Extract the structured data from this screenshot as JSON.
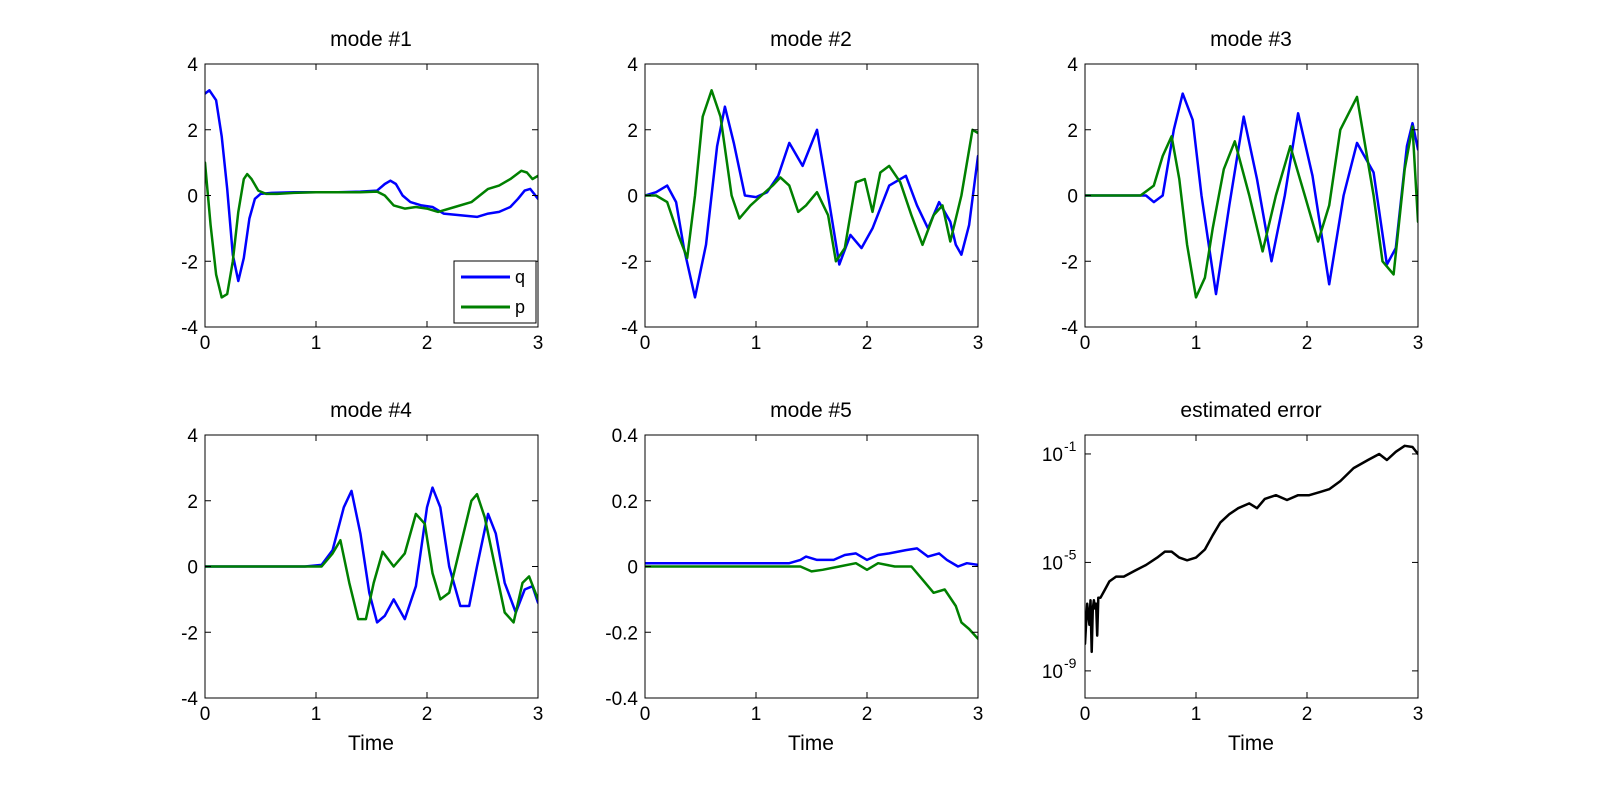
{
  "colors": {
    "q": "#0000ff",
    "p": "#008000",
    "error": "#000000",
    "axes": "#000000",
    "background": "#ffffff"
  },
  "chart_data": [
    {
      "type": "line",
      "title": "mode #1",
      "xlabel": "",
      "xlim": [
        0,
        3
      ],
      "ylim": [
        -4,
        4
      ],
      "xticks": [
        "0",
        "1",
        "2",
        "3"
      ],
      "yticks": [
        "-4",
        "-2",
        "0",
        "2",
        "4"
      ],
      "legend": {
        "placement": "bottom-right",
        "entries": [
          "q",
          "p"
        ]
      },
      "series": [
        {
          "name": "q",
          "color": "#0000ff",
          "x": [
            0,
            0.04,
            0.1,
            0.15,
            0.2,
            0.25,
            0.3,
            0.35,
            0.4,
            0.45,
            0.5,
            0.6,
            0.8,
            1.0,
            1.2,
            1.4,
            1.55,
            1.62,
            1.67,
            1.72,
            1.78,
            1.85,
            1.95,
            2.05,
            2.15,
            2.3,
            2.45,
            2.55,
            2.65,
            2.75,
            2.82,
            2.88,
            2.93,
            3.0
          ],
          "y": [
            3.1,
            3.2,
            2.9,
            1.8,
            0.2,
            -1.8,
            -2.6,
            -1.9,
            -0.7,
            -0.1,
            0.05,
            0.08,
            0.1,
            0.1,
            0.1,
            0.12,
            0.15,
            0.35,
            0.45,
            0.35,
            0.0,
            -0.2,
            -0.3,
            -0.35,
            -0.55,
            -0.6,
            -0.65,
            -0.55,
            -0.5,
            -0.35,
            -0.1,
            0.15,
            0.2,
            -0.1
          ]
        },
        {
          "name": "p",
          "color": "#008000",
          "x": [
            0,
            0.05,
            0.1,
            0.15,
            0.2,
            0.25,
            0.3,
            0.35,
            0.38,
            0.42,
            0.48,
            0.55,
            0.65,
            0.8,
            1.0,
            1.2,
            1.4,
            1.55,
            1.62,
            1.7,
            1.8,
            1.9,
            2.0,
            2.1,
            2.25,
            2.4,
            2.55,
            2.65,
            2.75,
            2.85,
            2.9,
            2.95,
            3.0
          ],
          "y": [
            1.0,
            -0.9,
            -2.4,
            -3.1,
            -3.0,
            -2.0,
            -0.5,
            0.5,
            0.65,
            0.5,
            0.15,
            0.05,
            0.05,
            0.08,
            0.1,
            0.1,
            0.1,
            0.12,
            0.0,
            -0.3,
            -0.4,
            -0.35,
            -0.4,
            -0.5,
            -0.35,
            -0.2,
            0.2,
            0.3,
            0.5,
            0.75,
            0.7,
            0.5,
            0.6
          ]
        }
      ]
    },
    {
      "type": "line",
      "title": "mode #2",
      "xlabel": "",
      "xlim": [
        0,
        3
      ],
      "ylim": [
        -4,
        4
      ],
      "xticks": [
        "0",
        "1",
        "2",
        "3"
      ],
      "yticks": [
        "-4",
        "-2",
        "0",
        "2",
        "4"
      ],
      "series": [
        {
          "name": "q",
          "color": "#0000ff",
          "x": [
            0,
            0.1,
            0.2,
            0.28,
            0.35,
            0.45,
            0.55,
            0.65,
            0.72,
            0.8,
            0.9,
            1.0,
            1.1,
            1.2,
            1.3,
            1.42,
            1.55,
            1.65,
            1.75,
            1.85,
            1.95,
            2.05,
            2.2,
            2.35,
            2.45,
            2.55,
            2.65,
            2.75,
            2.8,
            2.85,
            2.92,
            3.0
          ],
          "y": [
            0.0,
            0.1,
            0.3,
            -0.2,
            -1.6,
            -3.1,
            -1.5,
            1.5,
            2.7,
            1.6,
            0.0,
            -0.05,
            0.1,
            0.6,
            1.6,
            0.9,
            2.0,
            0.0,
            -2.1,
            -1.2,
            -1.6,
            -1.0,
            0.3,
            0.6,
            -0.3,
            -1.0,
            -0.2,
            -0.8,
            -1.5,
            -1.8,
            -0.9,
            1.2
          ]
        },
        {
          "name": "p",
          "color": "#008000",
          "x": [
            0,
            0.1,
            0.2,
            0.3,
            0.38,
            0.45,
            0.52,
            0.6,
            0.68,
            0.78,
            0.85,
            0.95,
            1.05,
            1.15,
            1.22,
            1.3,
            1.38,
            1.45,
            1.55,
            1.65,
            1.72,
            1.8,
            1.9,
            1.98,
            2.05,
            2.12,
            2.2,
            2.3,
            2.4,
            2.5,
            2.6,
            2.68,
            2.75,
            2.85,
            2.95,
            3.0
          ],
          "y": [
            0.0,
            0.0,
            -0.2,
            -1.2,
            -1.9,
            0.0,
            2.4,
            3.2,
            2.4,
            0.0,
            -0.7,
            -0.3,
            0.0,
            0.3,
            0.55,
            0.3,
            -0.5,
            -0.3,
            0.1,
            -0.6,
            -2.0,
            -1.6,
            0.4,
            0.5,
            -0.5,
            0.7,
            0.9,
            0.4,
            -0.6,
            -1.5,
            -0.6,
            -0.3,
            -1.4,
            0.0,
            2.0,
            1.9
          ]
        }
      ]
    },
    {
      "type": "line",
      "title": "mode #3",
      "xlabel": "",
      "xlim": [
        0,
        3
      ],
      "ylim": [
        -4,
        4
      ],
      "xticks": [
        "0",
        "1",
        "2",
        "3"
      ],
      "yticks": [
        "-4",
        "-2",
        "0",
        "2",
        "4"
      ],
      "series": [
        {
          "name": "q",
          "color": "#0000ff",
          "x": [
            0,
            0.4,
            0.55,
            0.62,
            0.7,
            0.8,
            0.88,
            0.97,
            1.05,
            1.18,
            1.3,
            1.43,
            1.55,
            1.68,
            1.8,
            1.92,
            2.05,
            2.2,
            2.33,
            2.45,
            2.6,
            2.72,
            2.8,
            2.9,
            2.95,
            3.0
          ],
          "y": [
            0.0,
            0.0,
            0.0,
            -0.2,
            0.0,
            2.0,
            3.1,
            2.3,
            0.0,
            -3.0,
            -0.3,
            2.4,
            0.5,
            -2.0,
            0.0,
            2.5,
            0.6,
            -2.7,
            0.0,
            1.6,
            0.7,
            -2.1,
            -1.6,
            1.5,
            2.2,
            1.4
          ]
        },
        {
          "name": "p",
          "color": "#008000",
          "x": [
            0,
            0.5,
            0.62,
            0.7,
            0.78,
            0.85,
            0.92,
            1.0,
            1.08,
            1.15,
            1.25,
            1.35,
            1.48,
            1.6,
            1.72,
            1.85,
            1.98,
            2.1,
            2.2,
            2.3,
            2.45,
            2.6,
            2.68,
            2.78,
            2.88,
            2.95,
            3.0
          ],
          "y": [
            0.0,
            0.0,
            0.3,
            1.2,
            1.8,
            0.5,
            -1.5,
            -3.1,
            -2.5,
            -1.0,
            0.8,
            1.65,
            0.0,
            -1.7,
            0.0,
            1.5,
            0.0,
            -1.4,
            -0.3,
            2.0,
            3.0,
            0.0,
            -2.0,
            -2.4,
            0.8,
            2.1,
            -0.8
          ]
        }
      ]
    },
    {
      "type": "line",
      "title": "mode #4",
      "xlabel": "Time",
      "xlim": [
        0,
        3
      ],
      "ylim": [
        -4,
        4
      ],
      "xticks": [
        "0",
        "1",
        "2",
        "3"
      ],
      "yticks": [
        "-4",
        "-2",
        "0",
        "2",
        "4"
      ],
      "series": [
        {
          "name": "q",
          "color": "#0000ff",
          "x": [
            0,
            0.9,
            1.05,
            1.15,
            1.25,
            1.32,
            1.4,
            1.48,
            1.55,
            1.62,
            1.7,
            1.8,
            1.9,
            2.0,
            2.05,
            2.12,
            2.2,
            2.3,
            2.38,
            2.45,
            2.55,
            2.62,
            2.7,
            2.8,
            2.88,
            2.95,
            3.0
          ],
          "y": [
            0.0,
            0.0,
            0.05,
            0.5,
            1.8,
            2.3,
            1.0,
            -0.8,
            -1.7,
            -1.5,
            -1.0,
            -1.6,
            -0.6,
            1.8,
            2.4,
            1.8,
            0.0,
            -1.2,
            -1.2,
            0.0,
            1.6,
            1.0,
            -0.5,
            -1.4,
            -0.7,
            -0.6,
            -1.1
          ]
        },
        {
          "name": "p",
          "color": "#008000",
          "x": [
            0,
            0.9,
            1.05,
            1.15,
            1.22,
            1.3,
            1.38,
            1.45,
            1.52,
            1.6,
            1.7,
            1.8,
            1.9,
            1.98,
            2.05,
            2.12,
            2.2,
            2.3,
            2.4,
            2.45,
            2.52,
            2.6,
            2.7,
            2.78,
            2.86,
            2.92,
            3.0
          ],
          "y": [
            0.0,
            0.0,
            0.0,
            0.4,
            0.8,
            -0.5,
            -1.6,
            -1.6,
            -0.5,
            0.45,
            0.0,
            0.4,
            1.6,
            1.3,
            -0.2,
            -1.0,
            -0.8,
            0.6,
            2.0,
            2.2,
            1.5,
            0.2,
            -1.4,
            -1.7,
            -0.5,
            -0.3,
            -1.0
          ]
        }
      ]
    },
    {
      "type": "line",
      "title": "mode #5",
      "xlabel": "Time",
      "xlim": [
        0,
        3
      ],
      "ylim": [
        -0.4,
        0.4
      ],
      "xticks": [
        "0",
        "1",
        "2",
        "3"
      ],
      "yticks": [
        "-0.4",
        "-0.2",
        "0",
        "0.2",
        "0.4"
      ],
      "series": [
        {
          "name": "q",
          "color": "#0000ff",
          "x": [
            0,
            1.3,
            1.4,
            1.45,
            1.55,
            1.7,
            1.8,
            1.9,
            2.0,
            2.1,
            2.2,
            2.35,
            2.45,
            2.55,
            2.65,
            2.72,
            2.82,
            2.9,
            3.0
          ],
          "y": [
            0.01,
            0.01,
            0.02,
            0.03,
            0.02,
            0.02,
            0.035,
            0.04,
            0.02,
            0.035,
            0.04,
            0.05,
            0.055,
            0.03,
            0.04,
            0.02,
            0.0,
            0.01,
            0.005
          ]
        },
        {
          "name": "p",
          "color": "#008000",
          "x": [
            0,
            1.3,
            1.4,
            1.5,
            1.6,
            1.75,
            1.9,
            2.0,
            2.1,
            2.25,
            2.4,
            2.5,
            2.6,
            2.7,
            2.8,
            2.85,
            2.92,
            3.0
          ],
          "y": [
            0.0,
            0.0,
            0.0,
            -0.015,
            -0.01,
            0.0,
            0.01,
            -0.01,
            0.01,
            0.0,
            0.0,
            -0.04,
            -0.08,
            -0.07,
            -0.12,
            -0.17,
            -0.19,
            -0.22
          ]
        }
      ]
    },
    {
      "type": "line",
      "title": "estimated error",
      "xlabel": "Time",
      "xlim": [
        0,
        3
      ],
      "ylim": [
        1e-10,
        0.5
      ],
      "yscale": "log",
      "xticks": [
        "0",
        "1",
        "2",
        "3"
      ],
      "yticks": [
        "10^-9",
        "10^-5",
        "10^-1"
      ],
      "series": [
        {
          "name": "",
          "color": "#000000",
          "x": [
            0.0,
            0.02,
            0.04,
            0.05,
            0.06,
            0.07,
            0.08,
            0.09,
            0.1,
            0.11,
            0.12,
            0.14,
            0.18,
            0.22,
            0.28,
            0.35,
            0.45,
            0.55,
            0.65,
            0.72,
            0.78,
            0.85,
            0.92,
            1.0,
            1.08,
            1.15,
            1.22,
            1.3,
            1.38,
            1.48,
            1.55,
            1.62,
            1.72,
            1.82,
            1.92,
            2.02,
            2.12,
            2.2,
            2.3,
            2.42,
            2.55,
            2.65,
            2.72,
            2.8,
            2.88,
            2.95,
            3.0
          ],
          "y": [
            1e-08,
            3e-07,
            5e-08,
            4e-07,
            5e-09,
            2e-07,
            4e-07,
            2e-07,
            3e-07,
            2e-08,
            5e-07,
            5e-07,
            1e-06,
            2e-06,
            3e-06,
            3e-06,
            5e-06,
            8e-06,
            1.5e-05,
            2.5e-05,
            2.5e-05,
            1.5e-05,
            1.2e-05,
            1.5e-05,
            3e-05,
            0.0001,
            0.0003,
            0.0006,
            0.001,
            0.0015,
            0.001,
            0.0022,
            0.003,
            0.002,
            0.003,
            0.003,
            0.004,
            0.005,
            0.01,
            0.03,
            0.06,
            0.1,
            0.06,
            0.12,
            0.2,
            0.18,
            0.1
          ]
        }
      ]
    }
  ]
}
